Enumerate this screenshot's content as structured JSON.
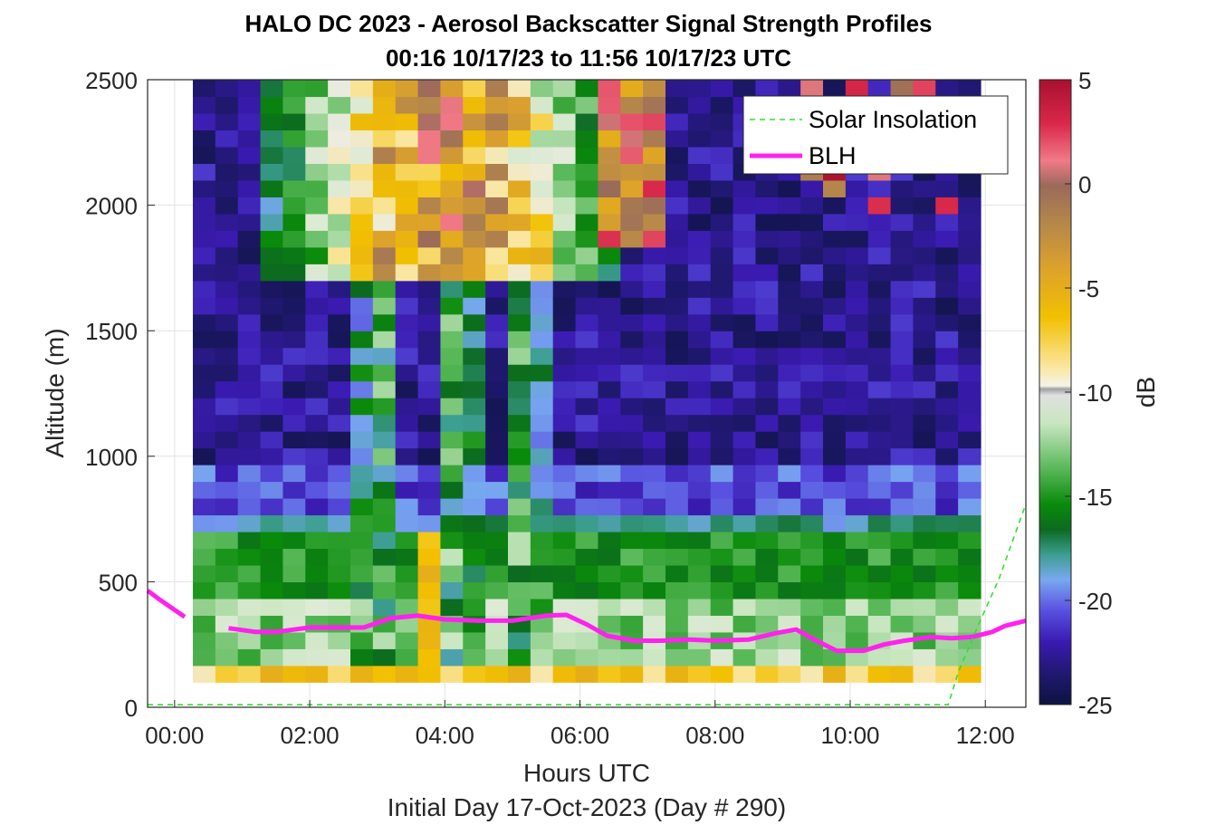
{
  "chart_data": {
    "type": "heatmap",
    "title_line1": "HALO DC 2023 - Aerosol Backscatter Signal Strength Profiles",
    "title_line2": "00:16 10/17/23 to 11:56 10/17/23  UTC",
    "xlabel": "Hours UTC",
    "xlabel2": "Initial Day 17-Oct-2023 (Day # 290)",
    "ylabel": "Altitude (m)",
    "colorbar_label": "dB",
    "xlim": [
      -0.4,
      12.6
    ],
    "ylim": [
      0,
      2500
    ],
    "clim": [
      -25,
      5
    ],
    "x_ticks": [
      0,
      2,
      4,
      6,
      8,
      10,
      12
    ],
    "x_tick_labels": [
      "00:00",
      "02:00",
      "04:00",
      "06:00",
      "08:00",
      "10:00",
      "12:00"
    ],
    "y_ticks": [
      0,
      500,
      1000,
      1500,
      2000,
      2500
    ],
    "y_tick_labels": [
      "0",
      "500",
      "1000",
      "1500",
      "2000",
      "2500"
    ],
    "colorbar_ticks": [
      5,
      0,
      -5,
      -10,
      -15,
      -20,
      -25
    ],
    "colorbar_tick_labels": [
      "5",
      "0",
      "-5",
      "-10",
      "-15",
      "-20",
      "-25"
    ],
    "grid": true,
    "legend_position": "top-right",
    "legend": [
      {
        "label": "Solar Insolation",
        "color": "#33dd33",
        "style": "dashed"
      },
      {
        "label": "BLH",
        "color": "#ff22ee",
        "style": "solid"
      }
    ],
    "heatmap": {
      "x_start_hours": 0.27,
      "x_end_hours": 11.93,
      "columns": 35,
      "y_start_m": 100,
      "y_end_m": 2500,
      "rows": 36,
      "units": "dB",
      "description_levels": [
        {
          "alt_range_m": [
            100,
            140
          ],
          "value_db": -7
        },
        {
          "alt_range_m": [
            140,
            700
          ],
          "value_db": -13
        },
        {
          "alt_range_m": [
            700,
            1000
          ],
          "value_db": -19
        },
        {
          "alt_range_m": [
            1000,
            2500
          ],
          "value_db": -23
        }
      ]
    },
    "series": [
      {
        "name": "BLH",
        "x": [
          -0.4,
          -0.2,
          0.15,
          0.5,
          0.8,
          1.2,
          1.5,
          2.0,
          2.5,
          2.8,
          3.2,
          3.6,
          4.0,
          4.5,
          5.0,
          5.5,
          5.8,
          6.1,
          6.4,
          6.8,
          7.2,
          7.6,
          8.0,
          8.5,
          8.9,
          9.2,
          9.5,
          9.8,
          10.2,
          10.5,
          10.8,
          11.2,
          11.5,
          11.8,
          12.1,
          12.3,
          12.6
        ],
        "y": [
          465,
          425,
          360,
          null,
          315,
          300,
          300,
          318,
          318,
          318,
          355,
          365,
          350,
          345,
          345,
          365,
          368,
          330,
          285,
          265,
          265,
          270,
          265,
          270,
          295,
          310,
          265,
          225,
          225,
          250,
          265,
          280,
          275,
          280,
          300,
          325,
          345
        ]
      },
      {
        "name": "Solar Insolation",
        "x": [
          -0.4,
          11.45,
          11.6,
          11.9,
          12.2,
          12.6
        ],
        "y": [
          10,
          10,
          140,
          330,
          510,
          810
        ]
      }
    ]
  }
}
